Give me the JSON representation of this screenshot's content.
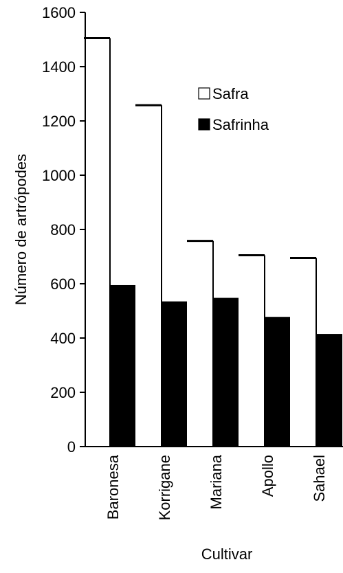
{
  "chart_data": {
    "type": "bar",
    "title": "",
    "xlabel": "Cultivar",
    "ylabel": "Número de artrópodes",
    "categories": [
      "Baronesa",
      "Korrigane",
      "Mariana",
      "Apollo",
      "Sahael"
    ],
    "series": [
      {
        "name": "Safra",
        "values": [
          1505,
          1258,
          758,
          705,
          695
        ],
        "fill": "#ffffff",
        "stroke": "#000000"
      },
      {
        "name": "Safrinha",
        "values": [
          595,
          535,
          548,
          478,
          415
        ],
        "fill": "#000000",
        "stroke": "#000000"
      }
    ],
    "ylim": [
      0,
      1600
    ],
    "yticks": [
      0,
      200,
      400,
      600,
      800,
      1000,
      1200,
      1400,
      1600
    ],
    "grid": false,
    "legend": "top-right"
  }
}
